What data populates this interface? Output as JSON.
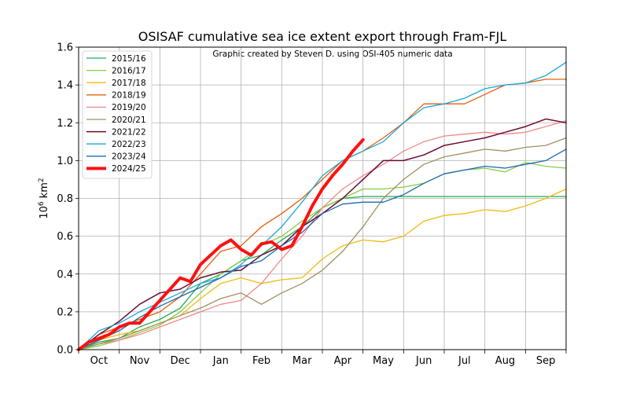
{
  "chart_data": {
    "type": "line",
    "title": "OSISAF cumulative sea ice extent export through Fram-FJL",
    "subtitle": "Graphic created by Steven D. using OSI-405 numeric data",
    "xlabel": "",
    "ylabel": "10^6 km^2",
    "ylabel_base": "10",
    "ylabel_exp": "6",
    "ylabel_unit": "km",
    "ylabel_unit_exp": "2",
    "xlim": [
      0,
      12
    ],
    "ylim": [
      0,
      1.6
    ],
    "x_unit": "months since 1 Oct",
    "grid": true,
    "legend_position": "top-left",
    "y_ticks": [
      {
        "value": 0.0,
        "label": "0.0"
      },
      {
        "value": 0.2,
        "label": "0.2"
      },
      {
        "value": 0.4,
        "label": "0.4"
      },
      {
        "value": 0.6,
        "label": "0.6"
      },
      {
        "value": 0.8,
        "label": "0.8"
      },
      {
        "value": 1.0,
        "label": "1.0"
      },
      {
        "value": 1.2,
        "label": "1.2"
      },
      {
        "value": 1.4,
        "label": "1.4"
      },
      {
        "value": 1.6,
        "label": "1.6"
      }
    ],
    "x_months": [
      "Oct",
      "Nov",
      "Dec",
      "Jan",
      "Feb",
      "Mar",
      "Apr",
      "May",
      "Jun",
      "Jul",
      "Aug",
      "Sep"
    ],
    "series": [
      {
        "name": "2015/16",
        "color": "#22aa55",
        "width": 1.3,
        "x": [
          0,
          0.5,
          1,
          1.5,
          2,
          2.5,
          3,
          3.5,
          4,
          4.5,
          5,
          5.5,
          6,
          6.5,
          7,
          7.5,
          8,
          9,
          10,
          11,
          12
        ],
        "y": [
          0,
          0.04,
          0.06,
          0.12,
          0.16,
          0.22,
          0.35,
          0.4,
          0.47,
          0.5,
          0.58,
          0.65,
          0.75,
          0.8,
          0.81,
          0.81,
          0.81,
          0.81,
          0.81,
          0.81,
          0.81
        ]
      },
      {
        "name": "2016/17",
        "color": "#88cc44",
        "width": 1.3,
        "x": [
          0,
          0.5,
          1,
          1.5,
          2,
          2.5,
          3,
          3.5,
          4,
          4.5,
          5,
          5.5,
          6,
          6.5,
          7,
          7.5,
          8,
          8.5,
          9,
          9.5,
          10,
          10.5,
          11,
          11.5,
          12
        ],
        "y": [
          0,
          0.02,
          0.05,
          0.09,
          0.13,
          0.2,
          0.3,
          0.4,
          0.47,
          0.55,
          0.6,
          0.68,
          0.75,
          0.8,
          0.85,
          0.85,
          0.86,
          0.88,
          0.93,
          0.95,
          0.96,
          0.94,
          0.99,
          0.97,
          0.96
        ]
      },
      {
        "name": "2017/18",
        "color": "#f0bb10",
        "width": 1.3,
        "x": [
          0,
          0.5,
          1,
          1.5,
          2,
          2.5,
          3,
          3.5,
          4,
          4.5,
          5,
          5.5,
          6,
          6.5,
          7,
          7.5,
          8,
          8.5,
          9,
          9.5,
          10,
          10.5,
          11,
          11.5,
          12
        ],
        "y": [
          0,
          0.05,
          0.08,
          0.1,
          0.14,
          0.18,
          0.27,
          0.35,
          0.38,
          0.35,
          0.37,
          0.38,
          0.48,
          0.55,
          0.58,
          0.57,
          0.6,
          0.68,
          0.71,
          0.72,
          0.74,
          0.73,
          0.76,
          0.8,
          0.85
        ]
      },
      {
        "name": "2018/19",
        "color": "#e06010",
        "width": 1.3,
        "x": [
          0,
          0.5,
          1,
          1.5,
          2,
          2.5,
          3,
          3.5,
          4,
          4.5,
          5,
          5.5,
          6,
          6.5,
          7,
          7.5,
          8,
          8.5,
          9,
          9.5,
          10,
          10.5,
          11,
          11.5,
          12
        ],
        "y": [
          0,
          0.08,
          0.12,
          0.16,
          0.2,
          0.28,
          0.4,
          0.52,
          0.55,
          0.65,
          0.72,
          0.8,
          0.9,
          1.0,
          1.05,
          1.12,
          1.2,
          1.3,
          1.3,
          1.3,
          1.35,
          1.4,
          1.41,
          1.43,
          1.43
        ]
      },
      {
        "name": "2019/20",
        "color": "#f08888",
        "width": 1.3,
        "x": [
          0,
          0.5,
          1,
          1.5,
          2,
          2.5,
          3,
          3.5,
          4,
          4.5,
          5,
          5.5,
          6,
          6.5,
          7,
          7.5,
          8,
          8.5,
          9,
          9.5,
          10,
          10.5,
          11,
          11.5,
          12
        ],
        "y": [
          0,
          0.03,
          0.05,
          0.08,
          0.12,
          0.16,
          0.2,
          0.24,
          0.26,
          0.35,
          0.48,
          0.6,
          0.75,
          0.85,
          0.92,
          0.98,
          1.05,
          1.1,
          1.13,
          1.14,
          1.15,
          1.14,
          1.15,
          1.18,
          1.21
        ]
      },
      {
        "name": "2020/21",
        "color": "#a09060",
        "width": 1.3,
        "x": [
          0,
          0.5,
          1,
          1.5,
          2,
          2.5,
          3,
          3.5,
          4,
          4.5,
          5,
          5.5,
          6,
          6.5,
          7,
          7.5,
          8,
          8.5,
          9,
          9.5,
          10,
          10.5,
          11,
          11.5,
          12
        ],
        "y": [
          0,
          0.03,
          0.06,
          0.1,
          0.14,
          0.18,
          0.22,
          0.27,
          0.3,
          0.24,
          0.3,
          0.35,
          0.42,
          0.52,
          0.65,
          0.8,
          0.9,
          0.98,
          1.02,
          1.04,
          1.06,
          1.05,
          1.07,
          1.08,
          1.12
        ]
      },
      {
        "name": "2021/22",
        "color": "#6a0a30",
        "width": 1.5,
        "x": [
          0,
          0.5,
          1,
          1.5,
          2,
          2.5,
          3,
          3.5,
          4,
          4.5,
          5,
          5.5,
          6,
          6.5,
          7,
          7.5,
          8,
          8.5,
          9,
          9.5,
          10,
          10.5,
          11,
          11.5,
          12
        ],
        "y": [
          0,
          0.08,
          0.15,
          0.24,
          0.3,
          0.32,
          0.38,
          0.41,
          0.42,
          0.5,
          0.55,
          0.65,
          0.72,
          0.8,
          0.9,
          1.0,
          1.0,
          1.03,
          1.08,
          1.1,
          1.12,
          1.15,
          1.18,
          1.22,
          1.2
        ]
      },
      {
        "name": "2022/23",
        "color": "#1aa8d8",
        "width": 1.3,
        "x": [
          0,
          0.5,
          1,
          1.5,
          2,
          2.5,
          3,
          3.5,
          4,
          4.5,
          5,
          5.5,
          6,
          6.5,
          7,
          7.5,
          8,
          8.5,
          9,
          9.5,
          10,
          10.5,
          11,
          11.5,
          12
        ],
        "y": [
          0,
          0.1,
          0.14,
          0.2,
          0.25,
          0.3,
          0.35,
          0.38,
          0.45,
          0.55,
          0.65,
          0.78,
          0.92,
          1.0,
          1.05,
          1.1,
          1.2,
          1.28,
          1.3,
          1.33,
          1.38,
          1.4,
          1.41,
          1.45,
          1.52
        ]
      },
      {
        "name": "2023/24",
        "color": "#1a6ab0",
        "width": 1.3,
        "x": [
          0,
          0.5,
          1,
          1.5,
          2,
          2.5,
          3,
          3.5,
          4,
          4.5,
          5,
          5.5,
          6,
          6.5,
          7,
          7.5,
          8,
          8.5,
          9,
          9.5,
          10,
          10.5,
          11,
          11.5,
          12
        ],
        "y": [
          0,
          0.05,
          0.1,
          0.17,
          0.23,
          0.28,
          0.33,
          0.38,
          0.44,
          0.47,
          0.55,
          0.62,
          0.72,
          0.77,
          0.78,
          0.78,
          0.82,
          0.88,
          0.93,
          0.95,
          0.97,
          0.96,
          0.98,
          1.0,
          1.06
        ]
      },
      {
        "name": "2024/25",
        "color": "#ff1010",
        "width": 4,
        "x": [
          0,
          0.25,
          0.5,
          0.75,
          1,
          1.25,
          1.5,
          1.75,
          2,
          2.25,
          2.5,
          2.75,
          3,
          3.25,
          3.5,
          3.75,
          4,
          4.25,
          4.5,
          4.75,
          5,
          5.25,
          5.5,
          5.75,
          6,
          6.25,
          6.5,
          6.75,
          7
        ],
        "y": [
          0,
          0.04,
          0.06,
          0.08,
          0.12,
          0.14,
          0.14,
          0.2,
          0.26,
          0.32,
          0.38,
          0.36,
          0.45,
          0.5,
          0.55,
          0.58,
          0.53,
          0.5,
          0.56,
          0.57,
          0.53,
          0.55,
          0.65,
          0.76,
          0.85,
          0.92,
          0.98,
          1.05,
          1.11
        ]
      }
    ]
  }
}
